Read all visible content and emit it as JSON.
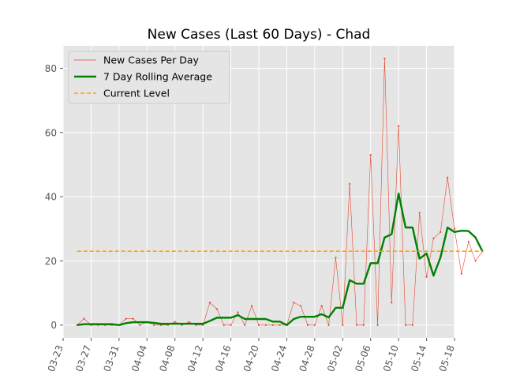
{
  "chart_data": {
    "type": "line",
    "title": "New Cases (Last 60 Days) - Chad",
    "xlabel": "",
    "ylabel": "",
    "x_start": "03-25",
    "x_ticks": [
      "03-23",
      "03-27",
      "03-31",
      "04-04",
      "04-08",
      "04-12",
      "04-16",
      "04-20",
      "04-24",
      "04-28",
      "05-02",
      "05-06",
      "05-10",
      "05-14",
      "05-18"
    ],
    "y_ticks": [
      0,
      20,
      40,
      60,
      80
    ],
    "xlim": [
      "03-23",
      "05-18"
    ],
    "ylim": [
      -4,
      87
    ],
    "grid": true,
    "legend_position": "top-left",
    "background": "#e5e5e5",
    "series": [
      {
        "name": "New Cases Per Day",
        "color": "#e24a33",
        "style": "thin-line-with-dots",
        "values": [
          0,
          2,
          0,
          0,
          0,
          0,
          0,
          2,
          2,
          0,
          1,
          0,
          0,
          0,
          1,
          0,
          1,
          0,
          0,
          7,
          5,
          0,
          0,
          4,
          0,
          6,
          0,
          0,
          0,
          0,
          0,
          7,
          6,
          0,
          0,
          6,
          0,
          21,
          0,
          44,
          0,
          0,
          53,
          0,
          83,
          7,
          62,
          0,
          0,
          35,
          15,
          27,
          29,
          46,
          30,
          16,
          26,
          20,
          23
        ]
      },
      {
        "name": "7 Day Rolling Average",
        "color": "#008000",
        "style": "thick-line",
        "values": [
          0,
          0.3,
          0.3,
          0.3,
          0.3,
          0.3,
          0,
          0.6,
          0.9,
          0.9,
          0.9,
          0.7,
          0.4,
          0.4,
          0.4,
          0.4,
          0.4,
          0.4,
          0.4,
          1.3,
          2.3,
          2.3,
          2.3,
          3.1,
          1.9,
          1.9,
          1.9,
          1.9,
          1.1,
          1.1,
          0,
          1.9,
          2.6,
          2.6,
          2.6,
          3.4,
          2.4,
          5.4,
          5.4,
          14,
          12.9,
          12.9,
          19.3,
          19.3,
          27.3,
          28.3,
          41,
          30.4,
          30.4,
          20.7,
          22.3,
          15.4,
          21.1,
          30.4,
          29,
          29.4,
          29.3,
          27.3,
          23
        ]
      },
      {
        "name": "Current Level",
        "color": "#ffa500",
        "style": "dashed-line",
        "values": [
          23
        ]
      }
    ]
  }
}
